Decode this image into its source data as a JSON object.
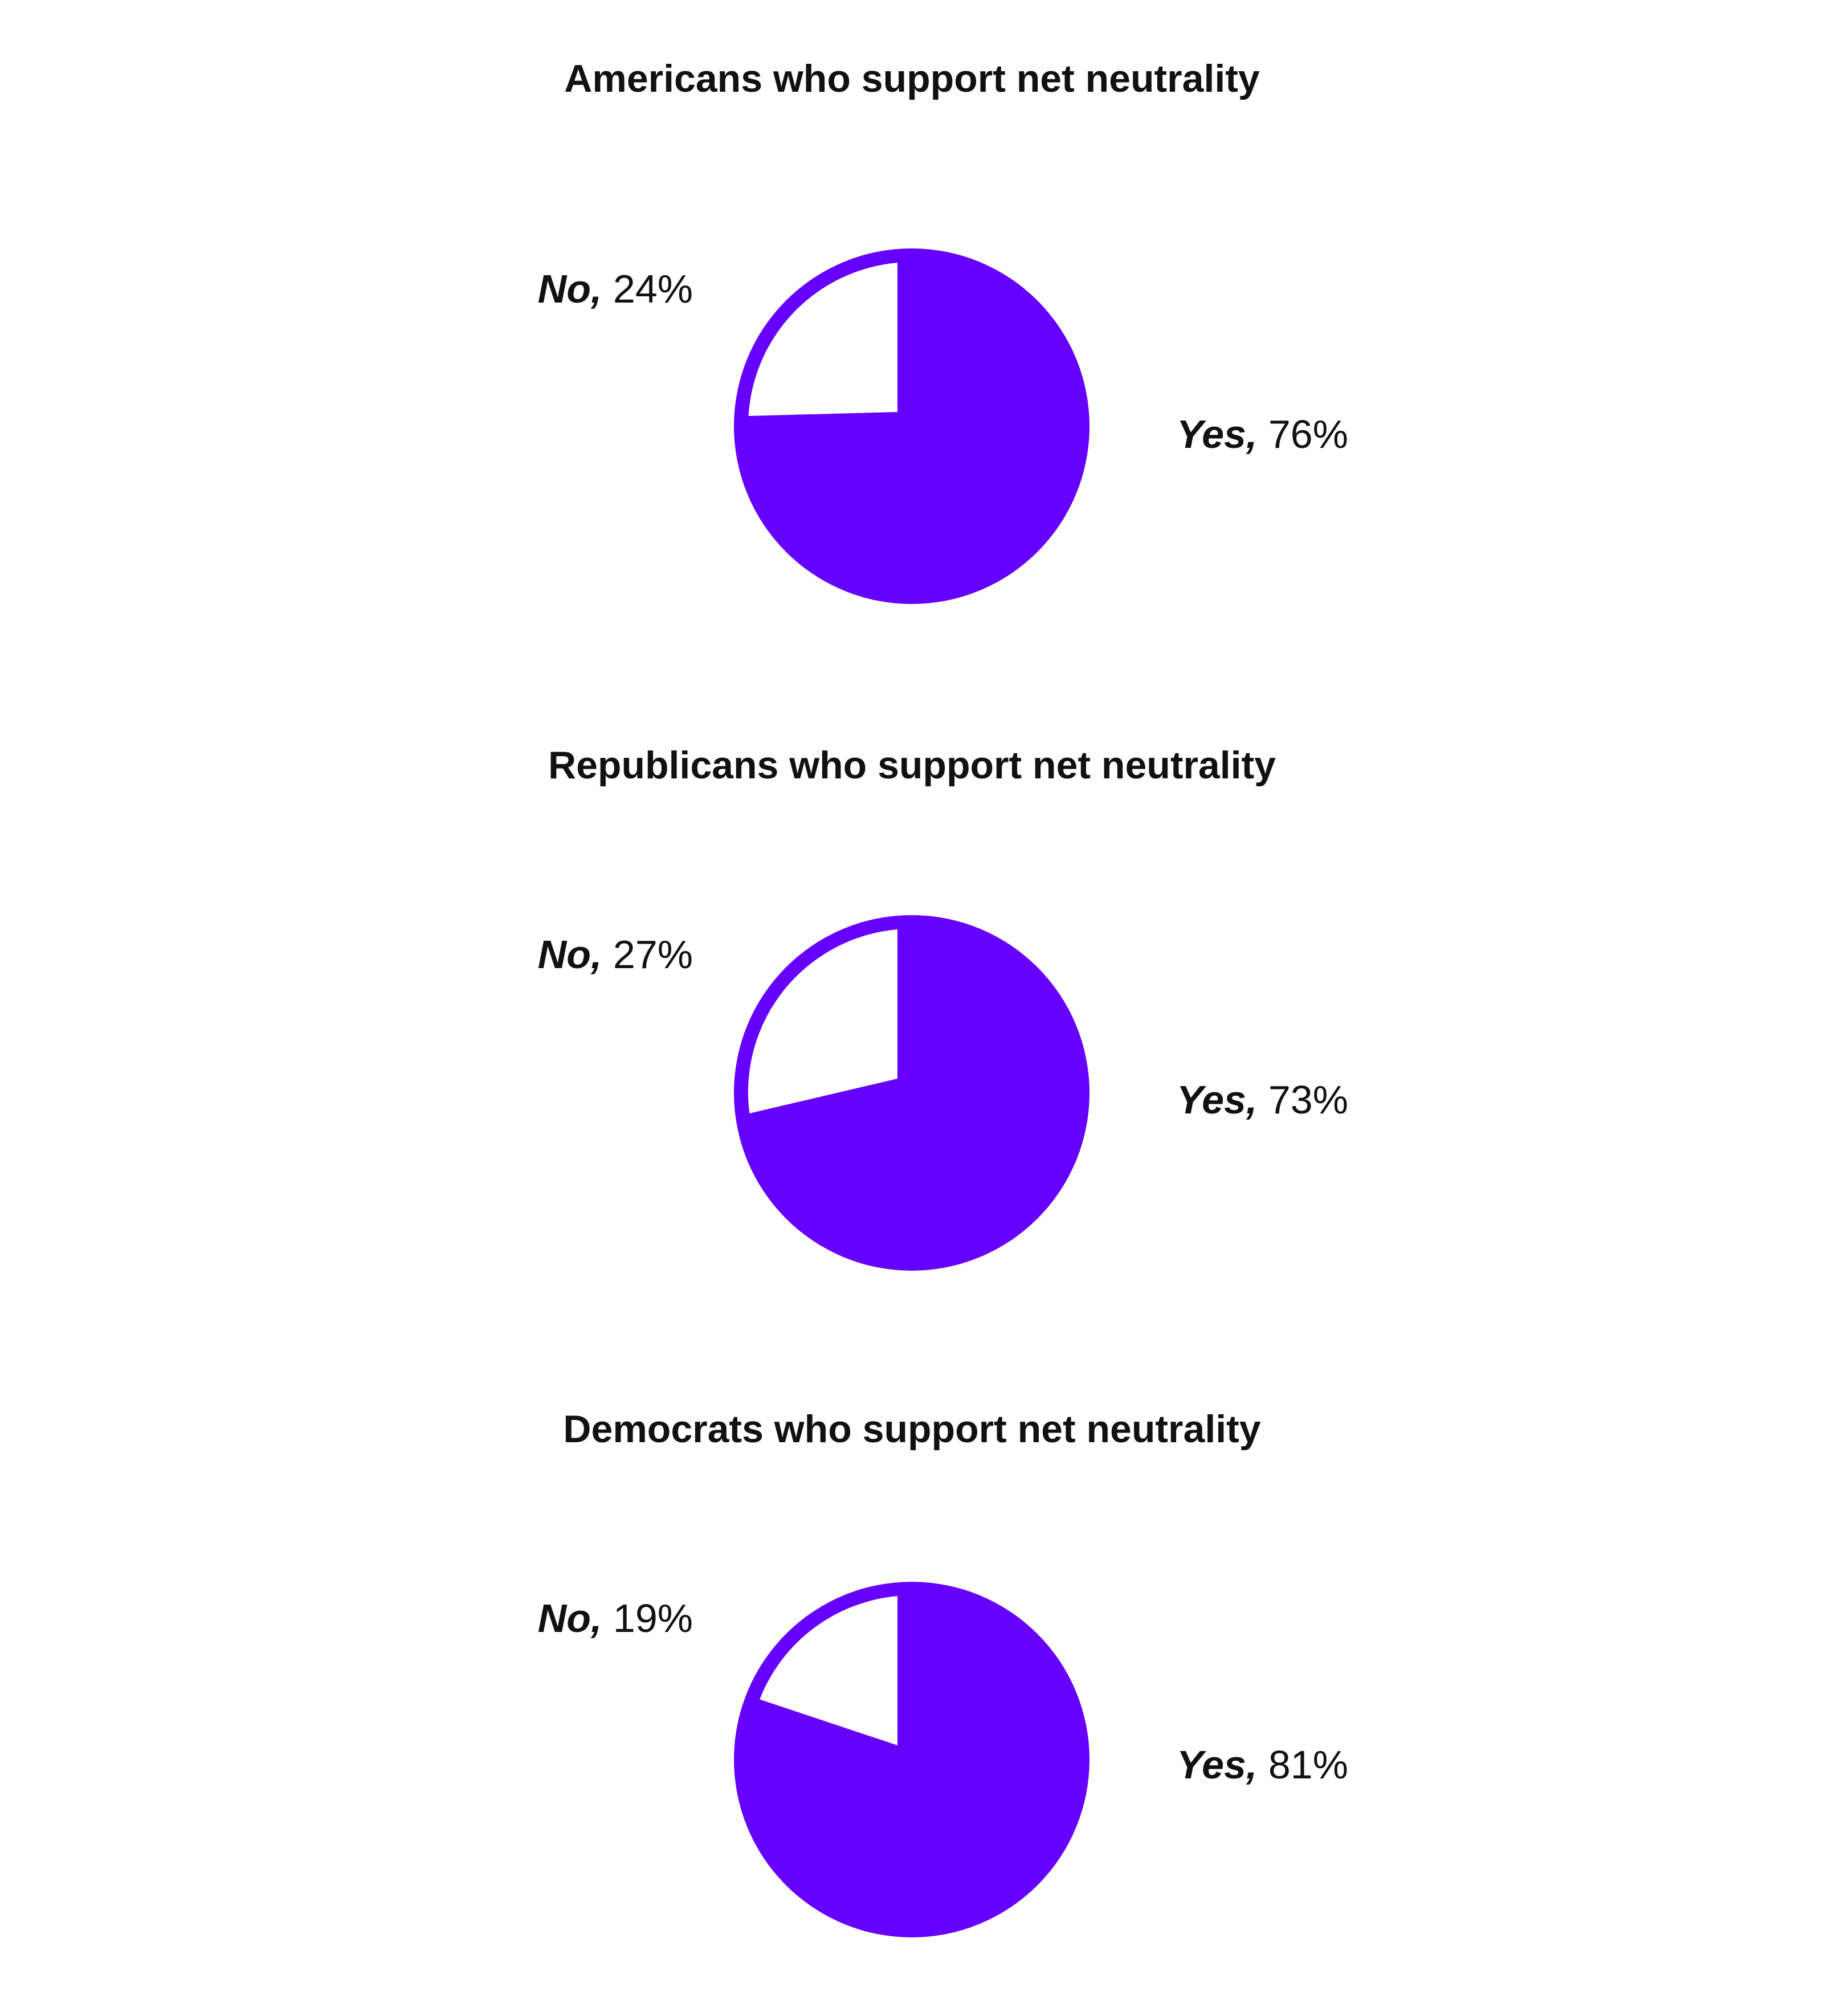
{
  "chart_data": [
    {
      "type": "pie",
      "title": "Americans who support net neutrality",
      "slices": [
        {
          "label": "No",
          "value": 24,
          "value_text": "24%",
          "color": "#ffffff"
        },
        {
          "label": "Yes",
          "value": 76,
          "value_text": "76%",
          "color": "#6600ff"
        }
      ]
    },
    {
      "type": "pie",
      "title": "Republicans who support net neutrality",
      "slices": [
        {
          "label": "No",
          "value": 27,
          "value_text": "27%",
          "color": "#ffffff"
        },
        {
          "label": "Yes",
          "value": 73,
          "value_text": "73%",
          "color": "#6600ff"
        }
      ]
    },
    {
      "type": "pie",
      "title": "Democrats who support net neutrality",
      "slices": [
        {
          "label": "No",
          "value": 19,
          "value_text": "19%",
          "color": "#ffffff"
        },
        {
          "label": "Yes",
          "value": 81,
          "value_text": "81%",
          "color": "#6600ff"
        }
      ]
    }
  ],
  "colors": {
    "accent": "#6600ff",
    "background": "#ffffff",
    "text": "#111111"
  }
}
